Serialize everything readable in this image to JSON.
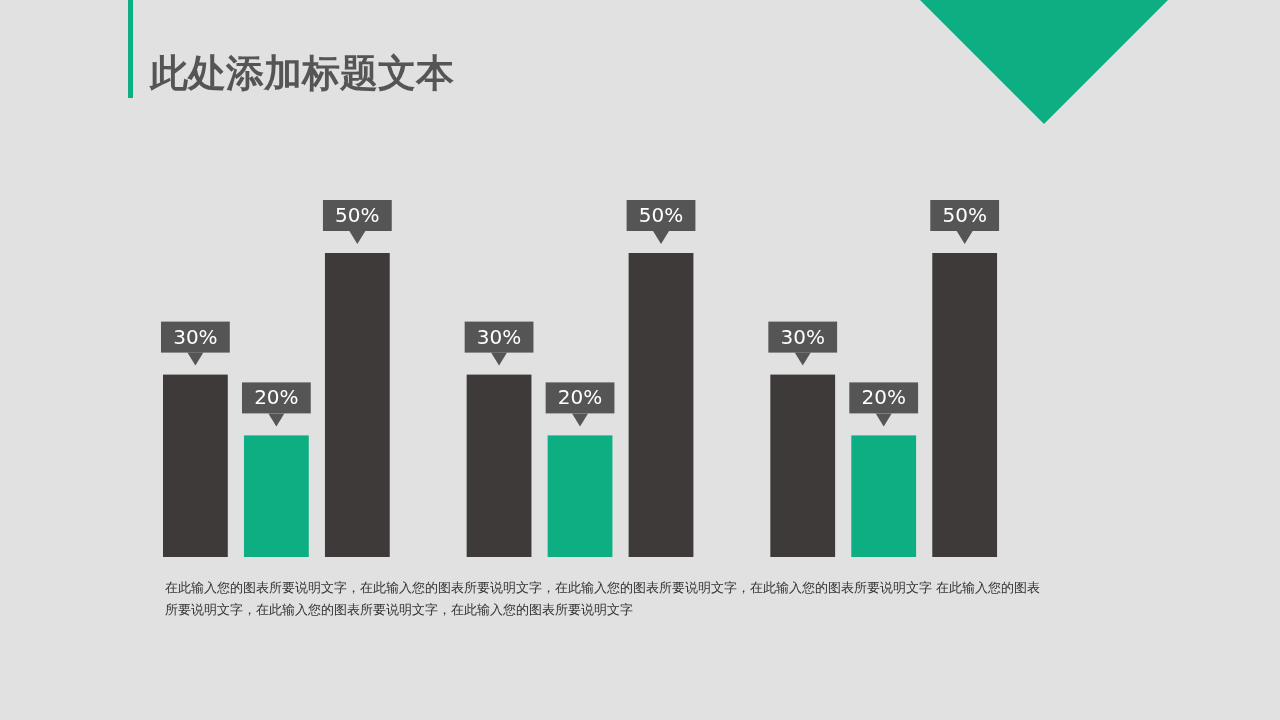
{
  "chart_data": {
    "type": "bar",
    "title": "此处添加标题文本",
    "categories": [
      null,
      null,
      null
    ],
    "series": [
      {
        "color": "#3d3a39",
        "values": [
          30,
          30,
          30
        ],
        "value_labels": [
          "30%",
          "30%",
          "30%"
        ]
      },
      {
        "color": "#0daf82",
        "values": [
          20,
          20,
          20
        ],
        "value_labels": [
          "20%",
          "20%",
          "20%"
        ]
      },
      {
        "color": "#3d3a39",
        "values": [
          50,
          50,
          50
        ],
        "value_labels": [
          "50%",
          "50%",
          "50%"
        ]
      }
    ],
    "annotations": [
      "在此输入您的图表所要说明文字，在此输入您的图表所要说明文字，在此输入您的图表所要说明文字，在此输入您的图表所要说明文字 在此输入您的图表所要说明文字，在此输入您的图表所要说明文字，在此输入您的图表所要说明文字"
    ]
  }
}
